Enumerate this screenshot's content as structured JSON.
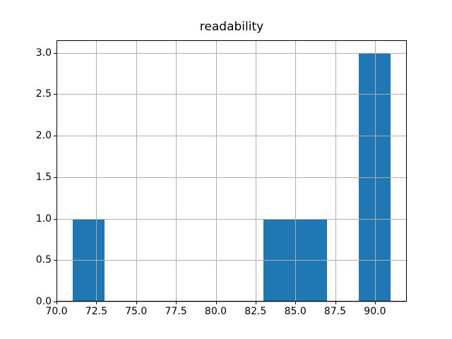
{
  "chart_data": {
    "type": "bar",
    "subtype": "histogram",
    "title": "readability",
    "xlabel": "",
    "ylabel": "",
    "xlim": [
      70,
      92
    ],
    "ylim": [
      0,
      3.15
    ],
    "grid": true,
    "legend_position": "none",
    "bar_color": "#1f77b4",
    "grid_color": "#b0b0b0",
    "spine_color": "#000000",
    "background_color": "#ffffff",
    "bars": [
      {
        "bin_start": 71,
        "bin_end": 73,
        "count": 1
      },
      {
        "bin_start": 83,
        "bin_end": 85,
        "count": 1
      },
      {
        "bin_start": 85,
        "bin_end": 87,
        "count": 1
      },
      {
        "bin_start": 89,
        "bin_end": 91,
        "count": 3
      }
    ],
    "x_ticks": [
      {
        "value": 70.0,
        "label": "70.0"
      },
      {
        "value": 72.5,
        "label": "72.5"
      },
      {
        "value": 75.0,
        "label": "75.0"
      },
      {
        "value": 77.5,
        "label": "77.5"
      },
      {
        "value": 80.0,
        "label": "80.0"
      },
      {
        "value": 82.5,
        "label": "82.5"
      },
      {
        "value": 85.0,
        "label": "85.0"
      },
      {
        "value": 87.5,
        "label": "87.5"
      },
      {
        "value": 90.0,
        "label": "90.0"
      }
    ],
    "y_ticks": [
      {
        "value": 0.0,
        "label": "0.0"
      },
      {
        "value": 0.5,
        "label": "0.5"
      },
      {
        "value": 1.0,
        "label": "1.0"
      },
      {
        "value": 1.5,
        "label": "1.5"
      },
      {
        "value": 2.0,
        "label": "2.0"
      },
      {
        "value": 2.5,
        "label": "2.5"
      },
      {
        "value": 3.0,
        "label": "3.0"
      }
    ]
  }
}
